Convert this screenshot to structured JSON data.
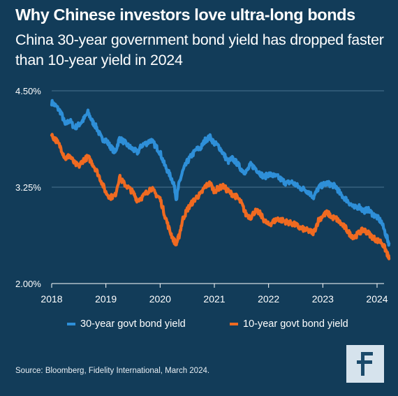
{
  "header": {
    "title": "Why Chinese investors love ultra-long bonds",
    "subtitle": "China 30-year government bond yield has dropped faster than 10-year yield in 2024"
  },
  "source": "Source: Bloomberg, Fidelity International, March 2024.",
  "logo": {
    "icon": "fidelity-logo-icon",
    "background": "#d6e3ed",
    "color": "#1b4a6b"
  },
  "colors": {
    "background": "#123c59",
    "series_30y": "#2e8fd8",
    "series_10y": "#ef6a21",
    "grid": "#4a7391",
    "text": "#ffffff"
  },
  "chart_data": {
    "type": "line",
    "title": "",
    "xlabel": "",
    "ylabel": "",
    "x_ticks": [
      "2018",
      "2019",
      "2020",
      "2021",
      "2022",
      "2023",
      "2024"
    ],
    "y_ticks": [
      "4.50%",
      "3.25%",
      "2.00%"
    ],
    "ylim": [
      2.0,
      4.5
    ],
    "xlim": [
      2018.0,
      2024.25
    ],
    "grid": true,
    "legend_position": "bottom",
    "series": [
      {
        "name": "30-year govt bond yield",
        "color": "#2e8fd8",
        "points": [
          [
            2018.0,
            4.35
          ],
          [
            2018.08,
            4.3
          ],
          [
            2018.17,
            4.22
          ],
          [
            2018.25,
            4.06
          ],
          [
            2018.33,
            4.12
          ],
          [
            2018.42,
            4.02
          ],
          [
            2018.5,
            4.06
          ],
          [
            2018.58,
            4.12
          ],
          [
            2018.67,
            4.22
          ],
          [
            2018.75,
            4.1
          ],
          [
            2018.83,
            4.02
          ],
          [
            2018.92,
            3.88
          ],
          [
            2019.0,
            3.86
          ],
          [
            2019.08,
            3.78
          ],
          [
            2019.17,
            3.7
          ],
          [
            2019.25,
            3.88
          ],
          [
            2019.33,
            3.84
          ],
          [
            2019.42,
            3.78
          ],
          [
            2019.5,
            3.74
          ],
          [
            2019.58,
            3.7
          ],
          [
            2019.67,
            3.8
          ],
          [
            2019.75,
            3.82
          ],
          [
            2019.83,
            3.86
          ],
          [
            2019.92,
            3.78
          ],
          [
            2020.0,
            3.7
          ],
          [
            2020.08,
            3.54
          ],
          [
            2020.17,
            3.42
          ],
          [
            2020.25,
            3.3
          ],
          [
            2020.3,
            3.1
          ],
          [
            2020.35,
            3.3
          ],
          [
            2020.42,
            3.46
          ],
          [
            2020.5,
            3.58
          ],
          [
            2020.58,
            3.66
          ],
          [
            2020.67,
            3.74
          ],
          [
            2020.75,
            3.76
          ],
          [
            2020.83,
            3.86
          ],
          [
            2020.92,
            3.9
          ],
          [
            2021.0,
            3.82
          ],
          [
            2021.08,
            3.78
          ],
          [
            2021.17,
            3.68
          ],
          [
            2021.25,
            3.58
          ],
          [
            2021.33,
            3.62
          ],
          [
            2021.42,
            3.56
          ],
          [
            2021.5,
            3.48
          ],
          [
            2021.58,
            3.44
          ],
          [
            2021.67,
            3.54
          ],
          [
            2021.75,
            3.5
          ],
          [
            2021.83,
            3.44
          ],
          [
            2021.92,
            3.38
          ],
          [
            2022.0,
            3.42
          ],
          [
            2022.08,
            3.4
          ],
          [
            2022.17,
            3.38
          ],
          [
            2022.25,
            3.34
          ],
          [
            2022.33,
            3.3
          ],
          [
            2022.42,
            3.32
          ],
          [
            2022.5,
            3.28
          ],
          [
            2022.58,
            3.24
          ],
          [
            2022.67,
            3.22
          ],
          [
            2022.75,
            3.18
          ],
          [
            2022.83,
            3.12
          ],
          [
            2022.92,
            3.24
          ],
          [
            2023.0,
            3.28
          ],
          [
            2023.08,
            3.3
          ],
          [
            2023.17,
            3.28
          ],
          [
            2023.25,
            3.25
          ],
          [
            2023.33,
            3.15
          ],
          [
            2023.42,
            3.1
          ],
          [
            2023.5,
            3.04
          ],
          [
            2023.58,
            2.98
          ],
          [
            2023.67,
            3.0
          ],
          [
            2023.75,
            2.94
          ],
          [
            2023.83,
            2.96
          ],
          [
            2023.92,
            2.9
          ],
          [
            2024.0,
            2.86
          ],
          [
            2024.08,
            2.8
          ],
          [
            2024.17,
            2.62
          ],
          [
            2024.22,
            2.52
          ]
        ]
      },
      {
        "name": "10-year govt bond yield",
        "color": "#ef6a21",
        "points": [
          [
            2018.0,
            3.92
          ],
          [
            2018.08,
            3.86
          ],
          [
            2018.17,
            3.76
          ],
          [
            2018.25,
            3.62
          ],
          [
            2018.33,
            3.66
          ],
          [
            2018.42,
            3.56
          ],
          [
            2018.5,
            3.52
          ],
          [
            2018.58,
            3.6
          ],
          [
            2018.67,
            3.64
          ],
          [
            2018.75,
            3.56
          ],
          [
            2018.83,
            3.46
          ],
          [
            2018.92,
            3.32
          ],
          [
            2019.0,
            3.18
          ],
          [
            2019.08,
            3.12
          ],
          [
            2019.17,
            3.14
          ],
          [
            2019.25,
            3.38
          ],
          [
            2019.33,
            3.3
          ],
          [
            2019.42,
            3.24
          ],
          [
            2019.5,
            3.18
          ],
          [
            2019.58,
            3.08
          ],
          [
            2019.67,
            3.12
          ],
          [
            2019.75,
            3.18
          ],
          [
            2019.83,
            3.24
          ],
          [
            2019.92,
            3.16
          ],
          [
            2020.0,
            3.1
          ],
          [
            2020.08,
            2.9
          ],
          [
            2020.17,
            2.7
          ],
          [
            2020.25,
            2.56
          ],
          [
            2020.3,
            2.52
          ],
          [
            2020.35,
            2.62
          ],
          [
            2020.42,
            2.84
          ],
          [
            2020.5,
            2.96
          ],
          [
            2020.58,
            3.04
          ],
          [
            2020.67,
            3.12
          ],
          [
            2020.75,
            3.16
          ],
          [
            2020.83,
            3.26
          ],
          [
            2020.92,
            3.3
          ],
          [
            2021.0,
            3.2
          ],
          [
            2021.08,
            3.24
          ],
          [
            2021.17,
            3.26
          ],
          [
            2021.25,
            3.2
          ],
          [
            2021.33,
            3.16
          ],
          [
            2021.42,
            3.12
          ],
          [
            2021.5,
            3.04
          ],
          [
            2021.58,
            2.9
          ],
          [
            2021.67,
            2.86
          ],
          [
            2021.75,
            2.94
          ],
          [
            2021.83,
            2.92
          ],
          [
            2021.92,
            2.82
          ],
          [
            2022.0,
            2.76
          ],
          [
            2022.08,
            2.8
          ],
          [
            2022.17,
            2.84
          ],
          [
            2022.25,
            2.82
          ],
          [
            2022.33,
            2.8
          ],
          [
            2022.42,
            2.78
          ],
          [
            2022.5,
            2.76
          ],
          [
            2022.58,
            2.72
          ],
          [
            2022.67,
            2.7
          ],
          [
            2022.75,
            2.68
          ],
          [
            2022.83,
            2.66
          ],
          [
            2022.92,
            2.82
          ],
          [
            2023.0,
            2.88
          ],
          [
            2023.08,
            2.92
          ],
          [
            2023.17,
            2.86
          ],
          [
            2023.25,
            2.84
          ],
          [
            2023.33,
            2.78
          ],
          [
            2023.42,
            2.72
          ],
          [
            2023.5,
            2.64
          ],
          [
            2023.58,
            2.6
          ],
          [
            2023.67,
            2.66
          ],
          [
            2023.75,
            2.7
          ],
          [
            2023.83,
            2.66
          ],
          [
            2023.92,
            2.6
          ],
          [
            2024.0,
            2.56
          ],
          [
            2024.08,
            2.54
          ],
          [
            2024.17,
            2.42
          ],
          [
            2024.22,
            2.32
          ]
        ]
      }
    ]
  }
}
